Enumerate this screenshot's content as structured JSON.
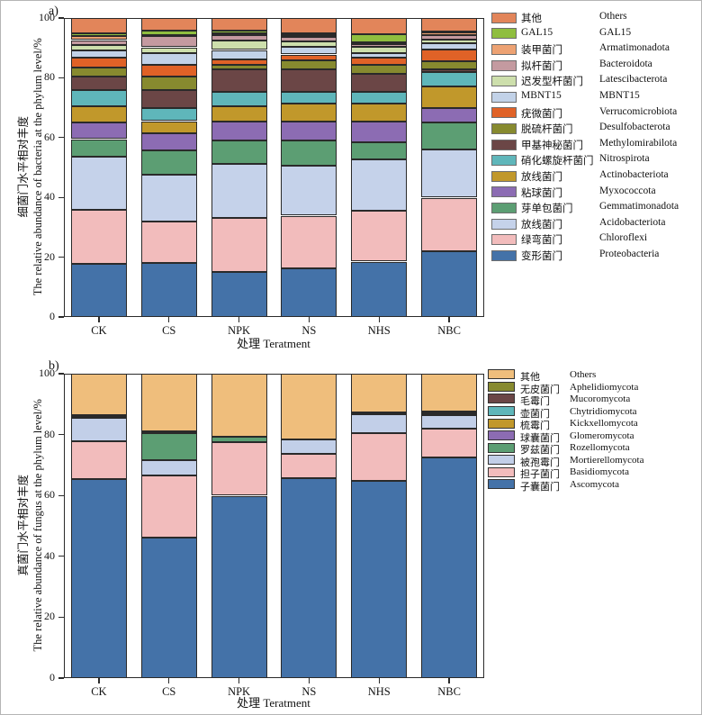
{
  "figure": {
    "panels": [
      {
        "label": "a)",
        "xlabel": "处理 Teratment",
        "ylabel_zh": "细菌门水平相对丰度",
        "ylabel_en": "The relative abundance of bacteria at the phylum level/%"
      },
      {
        "label": "b)",
        "xlabel": "处理 Teratment",
        "ylabel_zh": "真菌门水平相对丰度",
        "ylabel_en": "The relative abundance of fungus at the phylum level/%"
      }
    ]
  },
  "chart_data": [
    {
      "id": "a",
      "type": "bar",
      "stacked": true,
      "title": "",
      "categories": [
        "CK",
        "CS",
        "NPK",
        "NS",
        "NHS",
        "NBC"
      ],
      "xlabel": "处理 Teratment",
      "ylabel": "细菌门水平相对丰度 The relative abundance of bacteria at the phylum level/%",
      "ylim": [
        0,
        100
      ],
      "yticks": [
        0,
        20,
        40,
        60,
        80,
        100
      ],
      "grid": false,
      "legend_position": "right",
      "series": [
        {
          "name_zh": "变形菌门",
          "name_en": "Proteobacteria",
          "color": "#4472A8",
          "values": [
            17.9,
            18.2,
            15.2,
            16.2,
            18.5,
            22.1
          ]
        },
        {
          "name_zh": "绿弯菌门",
          "name_en": "Chloroflexi",
          "color": "#F2BCBC",
          "values": [
            18.0,
            13.8,
            18.0,
            17.7,
            17.0,
            17.8
          ]
        },
        {
          "name_zh": "放线菌门",
          "name_en": "Acidobacteriota",
          "color": "#C5D2EA",
          "values": [
            17.7,
            15.6,
            17.9,
            16.7,
            17.1,
            16.0
          ]
        },
        {
          "name_zh": "芽单包菌门",
          "name_en": "Gemmatimonadota",
          "color": "#5C9E73",
          "values": [
            5.9,
            8.0,
            7.9,
            8.4,
            5.9,
            9.1
          ]
        },
        {
          "name_zh": "粘球菌门",
          "name_en": "Myxococcota",
          "color": "#8C6CB3",
          "values": [
            5.5,
            5.9,
            6.5,
            6.5,
            7.0,
            4.9
          ]
        },
        {
          "name_zh": "放线菌门",
          "name_en": "Actinobacteriota",
          "color": "#C1982B",
          "values": [
            5.4,
            4.0,
            4.9,
            5.9,
            5.9,
            7.2
          ]
        },
        {
          "name_zh": "硝化螺旋杆菌门",
          "name_en": "Nitrospirota",
          "color": "#5FB6BA",
          "values": [
            5.5,
            4.4,
            5.0,
            4.0,
            4.0,
            4.7
          ]
        },
        {
          "name_zh": "甲基神秘菌门",
          "name_en": "Methylomirabilota",
          "color": "#6B4646",
          "values": [
            4.5,
            6.0,
            7.4,
            7.4,
            5.9,
            1.0
          ]
        },
        {
          "name_zh": "脱硫杆菌门",
          "name_en": "Desulfobacterota",
          "color": "#878A2F",
          "values": [
            2.9,
            4.5,
            1.5,
            3.0,
            3.0,
            2.8
          ]
        },
        {
          "name_zh": "疣微菌门",
          "name_en": "Verrucomicrobiota",
          "color": "#E06227",
          "values": [
            3.5,
            3.9,
            2.0,
            2.0,
            2.5,
            3.9
          ]
        },
        {
          "name_zh": "MBNT15",
          "name_en": "MBNT15",
          "color": "#C2D2E8",
          "values": [
            2.3,
            3.9,
            3.0,
            2.5,
            1.5,
            2.0
          ]
        },
        {
          "name_zh": "迟发型杆菌门",
          "name_en": "Latescibacterota",
          "color": "#CDDFAC",
          "values": [
            2.0,
            2.0,
            3.1,
            2.0,
            2.0,
            1.3
          ]
        },
        {
          "name_zh": "拟杆菌门",
          "name_en": "Bacteroidota",
          "color": "#C49AA0",
          "values": [
            1.5,
            3.8,
            1.8,
            1.5,
            1.0,
            1.4
          ]
        },
        {
          "name_zh": "装甲菌门",
          "name_en": "Armatimonadota",
          "color": "#EDA273",
          "values": [
            1.4,
            0.3,
            0.8,
            0.5,
            0.5,
            1.0
          ]
        },
        {
          "name_zh": "GAL15",
          "name_en": "GAL15",
          "color": "#8FBE3F",
          "values": [
            0.8,
            1.5,
            0.7,
            0.5,
            2.9,
            0.2
          ]
        },
        {
          "name_zh": "其他",
          "name_en": "Others",
          "color": "#E2855A",
          "values": [
            5.2,
            4.2,
            4.3,
            5.2,
            5.3,
            4.6
          ]
        }
      ]
    },
    {
      "id": "b",
      "type": "bar",
      "stacked": true,
      "title": "",
      "categories": [
        "CK",
        "CS",
        "NPK",
        "NS",
        "NHS",
        "NBC"
      ],
      "xlabel": "处理 Teratment",
      "ylabel": "真菌门水平相对丰度 The relative abundance of fungus at the phylum level/%",
      "ylim": [
        0,
        100
      ],
      "yticks": [
        0,
        20,
        40,
        60,
        80,
        100
      ],
      "grid": false,
      "legend_position": "right",
      "series": [
        {
          "name_zh": "子囊菌门",
          "name_en": "Ascomycota",
          "color": "#4472A8",
          "values": [
            65.3,
            46.2,
            59.9,
            65.6,
            64.9,
            72.5
          ]
        },
        {
          "name_zh": "担子菌门",
          "name_en": "Basidiomycota",
          "color": "#F2BCBC",
          "values": [
            12.5,
            20.4,
            17.7,
            8.1,
            15.7,
            9.5
          ]
        },
        {
          "name_zh": "被孢霉门",
          "name_en": "Mortierellomycota",
          "color": "#C2CFE8",
          "values": [
            7.7,
            5.1,
            0,
            4.7,
            6.1,
            4.3
          ]
        },
        {
          "name_zh": "罗兹菌门",
          "name_en": "Rozellomycota",
          "color": "#5C9E73",
          "values": [
            0,
            8.9,
            1.8,
            0,
            0,
            0.7
          ]
        },
        {
          "name_zh": "球囊菌门",
          "name_en": "Glomeromycota",
          "color": "#8C6CB3",
          "values": [
            0,
            0,
            0,
            0,
            0,
            0.7
          ]
        },
        {
          "name_zh": "梳霉门",
          "name_en": "Kickxellomycota",
          "color": "#C1982B",
          "values": [
            0,
            0,
            0,
            0,
            0,
            0
          ]
        },
        {
          "name_zh": "壶菌门",
          "name_en": "Chytridiomycota",
          "color": "#5FB6BA",
          "values": [
            0,
            0,
            0,
            0,
            0,
            0
          ]
        },
        {
          "name_zh": "毛霉门",
          "name_en": "Mucoromycota",
          "color": "#6B4646",
          "values": [
            0.7,
            0.4,
            0,
            0,
            0.4,
            0
          ]
        },
        {
          "name_zh": "无皮菌门",
          "name_en": "Aphelidiomycota",
          "color": "#878A2F",
          "values": [
            0.3,
            0,
            0,
            0,
            0.2,
            0
          ]
        },
        {
          "name_zh": "其他",
          "name_en": "Others",
          "color": "#EFBE7C",
          "values": [
            13.5,
            19.0,
            20.6,
            21.6,
            12.7,
            12.3
          ]
        }
      ]
    }
  ]
}
